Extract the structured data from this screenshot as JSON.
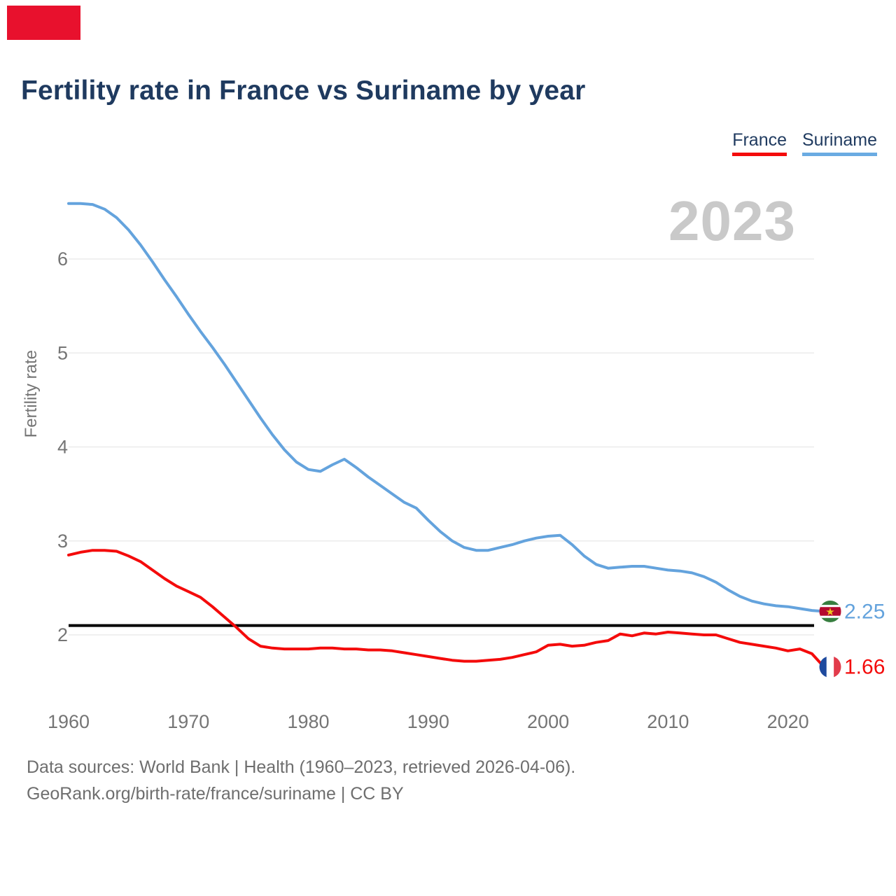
{
  "page": {
    "title": "Fertility rate in France vs Suriname by year",
    "watermark": "2023",
    "y_axis_label": "Fertility rate",
    "source_line1": "Data sources: World Bank | Health (1960–2023, retrieved 2026-04-06).",
    "source_line2": "GeoRank.org/birth-rate/france/suriname | CC BY",
    "marker_color": "#e8112d",
    "title_color": "#1f3a5f",
    "axis_text_color": "#757575",
    "source_text_color": "#6e6e6e",
    "watermark_color": "#c9c9c9",
    "gridline_color": "#ebebeb"
  },
  "legend": [
    {
      "label": "France",
      "color": "#f40b0b"
    },
    {
      "label": "Suriname",
      "color": "#6aabe2"
    }
  ],
  "chart_data": {
    "type": "line",
    "title": "Fertility rate in France vs Suriname by year",
    "ylabel": "Fertility rate",
    "x_ticks": [
      1960,
      1970,
      1980,
      1990,
      2000,
      2010,
      2020
    ],
    "y_ticks": [
      2,
      3,
      4,
      5,
      6
    ],
    "xlim": [
      1960,
      2023
    ],
    "ylim": [
      1.45,
      6.8
    ],
    "grid": "horizontal-only",
    "legend_position": "top-right",
    "watermark": "2023",
    "replacement_line": {
      "value": 2.1,
      "color": "#000000"
    },
    "years": [
      1960,
      1961,
      1962,
      1963,
      1964,
      1965,
      1966,
      1967,
      1968,
      1969,
      1970,
      1971,
      1972,
      1973,
      1974,
      1975,
      1976,
      1977,
      1978,
      1979,
      1980,
      1981,
      1982,
      1983,
      1984,
      1985,
      1986,
      1987,
      1988,
      1989,
      1990,
      1991,
      1992,
      1993,
      1994,
      1995,
      1996,
      1997,
      1998,
      1999,
      2000,
      2001,
      2002,
      2003,
      2004,
      2005,
      2006,
      2007,
      2008,
      2009,
      2010,
      2011,
      2012,
      2013,
      2014,
      2015,
      2016,
      2017,
      2018,
      2019,
      2020,
      2021,
      2022,
      2023
    ],
    "series": [
      {
        "name": "Suriname",
        "color": "#64a3dd",
        "end_label": "2.25",
        "end_value": 2.25,
        "flag": "suriname",
        "flag_colors": {
          "green": "#377e3f",
          "red": "#b40a2e",
          "white": "#ffffff",
          "star": "#ecc81d"
        },
        "values": [
          6.59,
          6.59,
          6.58,
          6.53,
          6.44,
          6.31,
          6.15,
          5.97,
          5.78,
          5.6,
          5.41,
          5.23,
          5.06,
          4.88,
          4.69,
          4.5,
          4.31,
          4.13,
          3.97,
          3.84,
          3.76,
          3.74,
          3.81,
          3.87,
          3.78,
          3.68,
          3.59,
          3.5,
          3.41,
          3.35,
          3.22,
          3.1,
          3.0,
          2.93,
          2.9,
          2.9,
          2.93,
          2.96,
          3.0,
          3.03,
          3.05,
          3.06,
          2.96,
          2.84,
          2.75,
          2.71,
          2.72,
          2.73,
          2.73,
          2.71,
          2.69,
          2.68,
          2.66,
          2.62,
          2.56,
          2.48,
          2.41,
          2.36,
          2.33,
          2.31,
          2.3,
          2.28,
          2.26,
          2.25
        ]
      },
      {
        "name": "France",
        "color": "#f40b0b",
        "end_label": "1.66",
        "end_value": 1.66,
        "flag": "france",
        "flag_colors": {
          "blue": "#1e4a9e",
          "white": "#ffffff",
          "red": "#e23b4b"
        },
        "values": [
          2.85,
          2.88,
          2.9,
          2.9,
          2.89,
          2.84,
          2.78,
          2.69,
          2.6,
          2.52,
          2.46,
          2.4,
          2.3,
          2.19,
          2.08,
          1.96,
          1.88,
          1.86,
          1.85,
          1.85,
          1.85,
          1.86,
          1.86,
          1.85,
          1.85,
          1.84,
          1.84,
          1.83,
          1.81,
          1.79,
          1.77,
          1.75,
          1.73,
          1.72,
          1.72,
          1.73,
          1.74,
          1.76,
          1.79,
          1.82,
          1.89,
          1.9,
          1.88,
          1.89,
          1.92,
          1.94,
          2.01,
          1.99,
          2.02,
          2.01,
          2.03,
          2.02,
          2.01,
          2.0,
          2.0,
          1.96,
          1.92,
          1.9,
          1.88,
          1.86,
          1.83,
          1.85,
          1.8,
          1.66
        ]
      }
    ]
  }
}
